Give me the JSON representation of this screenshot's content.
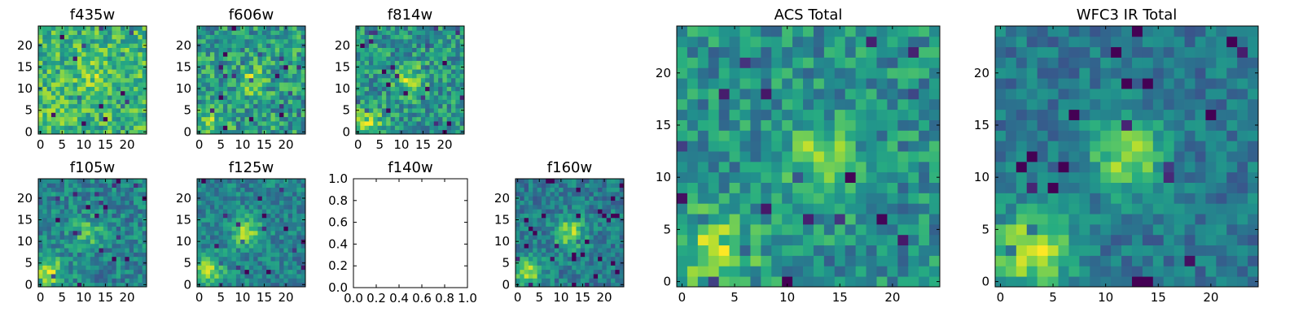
{
  "colors": {
    "background": "#ffffff",
    "axis": "#000000"
  },
  "chart_data": [
    {
      "type": "heatmap",
      "title": "f435w",
      "colormap": "viridis",
      "grid": "off",
      "xlim": [
        -0.5,
        24.5
      ],
      "ylim": [
        -0.5,
        24.5
      ],
      "xticks": [
        0,
        5,
        10,
        15,
        20
      ],
      "yticks": [
        0,
        5,
        10,
        15,
        20
      ],
      "blob": {
        "x": 12,
        "y": 13,
        "strength": 0.12
      },
      "corner": {
        "x": 2,
        "y": 2,
        "strength": 0.08
      },
      "base": 0.66,
      "noise": 0.22,
      "seed": 11
    },
    {
      "type": "heatmap",
      "title": "f606w",
      "colormap": "viridis",
      "grid": "off",
      "xlim": [
        -0.5,
        24.5
      ],
      "ylim": [
        -0.5,
        24.5
      ],
      "xticks": [
        0,
        5,
        10,
        15,
        20
      ],
      "yticks": [
        0,
        5,
        10,
        15,
        20
      ],
      "blob": {
        "x": 12,
        "y": 12,
        "strength": 0.22
      },
      "corner": {
        "x": 2,
        "y": 2,
        "strength": 0.25
      },
      "base": 0.55,
      "noise": 0.24,
      "seed": 23
    },
    {
      "type": "heatmap",
      "title": "f814w",
      "colormap": "viridis",
      "grid": "off",
      "xlim": [
        -0.5,
        24.5
      ],
      "ylim": [
        -0.5,
        24.5
      ],
      "xticks": [
        0,
        5,
        10,
        15,
        20
      ],
      "yticks": [
        0,
        5,
        10,
        15,
        20
      ],
      "blob": {
        "x": 12,
        "y": 12,
        "strength": 0.3
      },
      "corner": {
        "x": 2,
        "y": 2,
        "strength": 0.32
      },
      "base": 0.52,
      "noise": 0.22,
      "seed": 37
    },
    {
      "type": "heatmap",
      "title": "f105w",
      "colormap": "viridis",
      "grid": "off",
      "xlim": [
        -0.5,
        24.5
      ],
      "ylim": [
        -0.5,
        24.5
      ],
      "xticks": [
        0,
        5,
        10,
        15,
        20
      ],
      "yticks": [
        0,
        5,
        10,
        15,
        20
      ],
      "blob": {
        "x": 11,
        "y": 12,
        "strength": 0.25
      },
      "corner": {
        "x": 2,
        "y": 3,
        "strength": 0.4
      },
      "base": 0.45,
      "noise": 0.18,
      "seed": 41
    },
    {
      "type": "heatmap",
      "title": "f125w",
      "colormap": "viridis",
      "grid": "off",
      "xlim": [
        -0.5,
        24.5
      ],
      "ylim": [
        -0.5,
        24.5
      ],
      "xticks": [
        0,
        5,
        10,
        15,
        20
      ],
      "yticks": [
        0,
        5,
        10,
        15,
        20
      ],
      "blob": {
        "x": 11,
        "y": 12,
        "strength": 0.38
      },
      "corner": {
        "x": 2,
        "y": 3,
        "strength": 0.38
      },
      "base": 0.45,
      "noise": 0.16,
      "seed": 53
    },
    {
      "type": "empty",
      "title": "f140w",
      "xlim": [
        0,
        1
      ],
      "ylim": [
        0,
        1
      ],
      "xticks": [
        "0.0",
        "0.2",
        "0.4",
        "0.6",
        "0.8",
        "1.0"
      ],
      "yticks": [
        "0.0",
        "0.2",
        "0.4",
        "0.6",
        "0.8",
        "1.0"
      ]
    },
    {
      "type": "heatmap",
      "title": "f160w",
      "colormap": "viridis",
      "grid": "off",
      "xlim": [
        -0.5,
        24.5
      ],
      "ylim": [
        -0.5,
        24.5
      ],
      "xticks": [
        0,
        5,
        10,
        15,
        20
      ],
      "yticks": [
        0,
        5,
        10,
        15,
        20
      ],
      "blob": {
        "x": 12,
        "y": 12,
        "strength": 0.42
      },
      "corner": {
        "x": 2,
        "y": 3,
        "strength": 0.42
      },
      "base": 0.42,
      "noise": 0.16,
      "seed": 67
    },
    {
      "type": "heatmap",
      "title": "ACS Total",
      "colormap": "viridis",
      "grid": "off",
      "xlim": [
        -0.5,
        24.5
      ],
      "ylim": [
        -0.5,
        24.5
      ],
      "xticks": [
        0,
        5,
        10,
        15,
        20
      ],
      "yticks": [
        0,
        5,
        10,
        15,
        20
      ],
      "blob": {
        "x": 13,
        "y": 12,
        "strength": 0.3
      },
      "corner": {
        "x": 3,
        "y": 3,
        "strength": 0.35
      },
      "base": 0.5,
      "noise": 0.2,
      "seed": 79
    },
    {
      "type": "heatmap",
      "title": "WFC3 IR Total",
      "colormap": "viridis",
      "grid": "off",
      "xlim": [
        -0.5,
        24.5
      ],
      "ylim": [
        -0.5,
        24.5
      ],
      "xticks": [
        0,
        5,
        10,
        15,
        20
      ],
      "yticks": [
        0,
        5,
        10,
        15,
        20
      ],
      "blob": {
        "x": 12,
        "y": 12,
        "strength": 0.45
      },
      "corner": {
        "x": 3,
        "y": 3,
        "strength": 0.5
      },
      "base": 0.4,
      "noise": 0.14,
      "seed": 97
    }
  ]
}
